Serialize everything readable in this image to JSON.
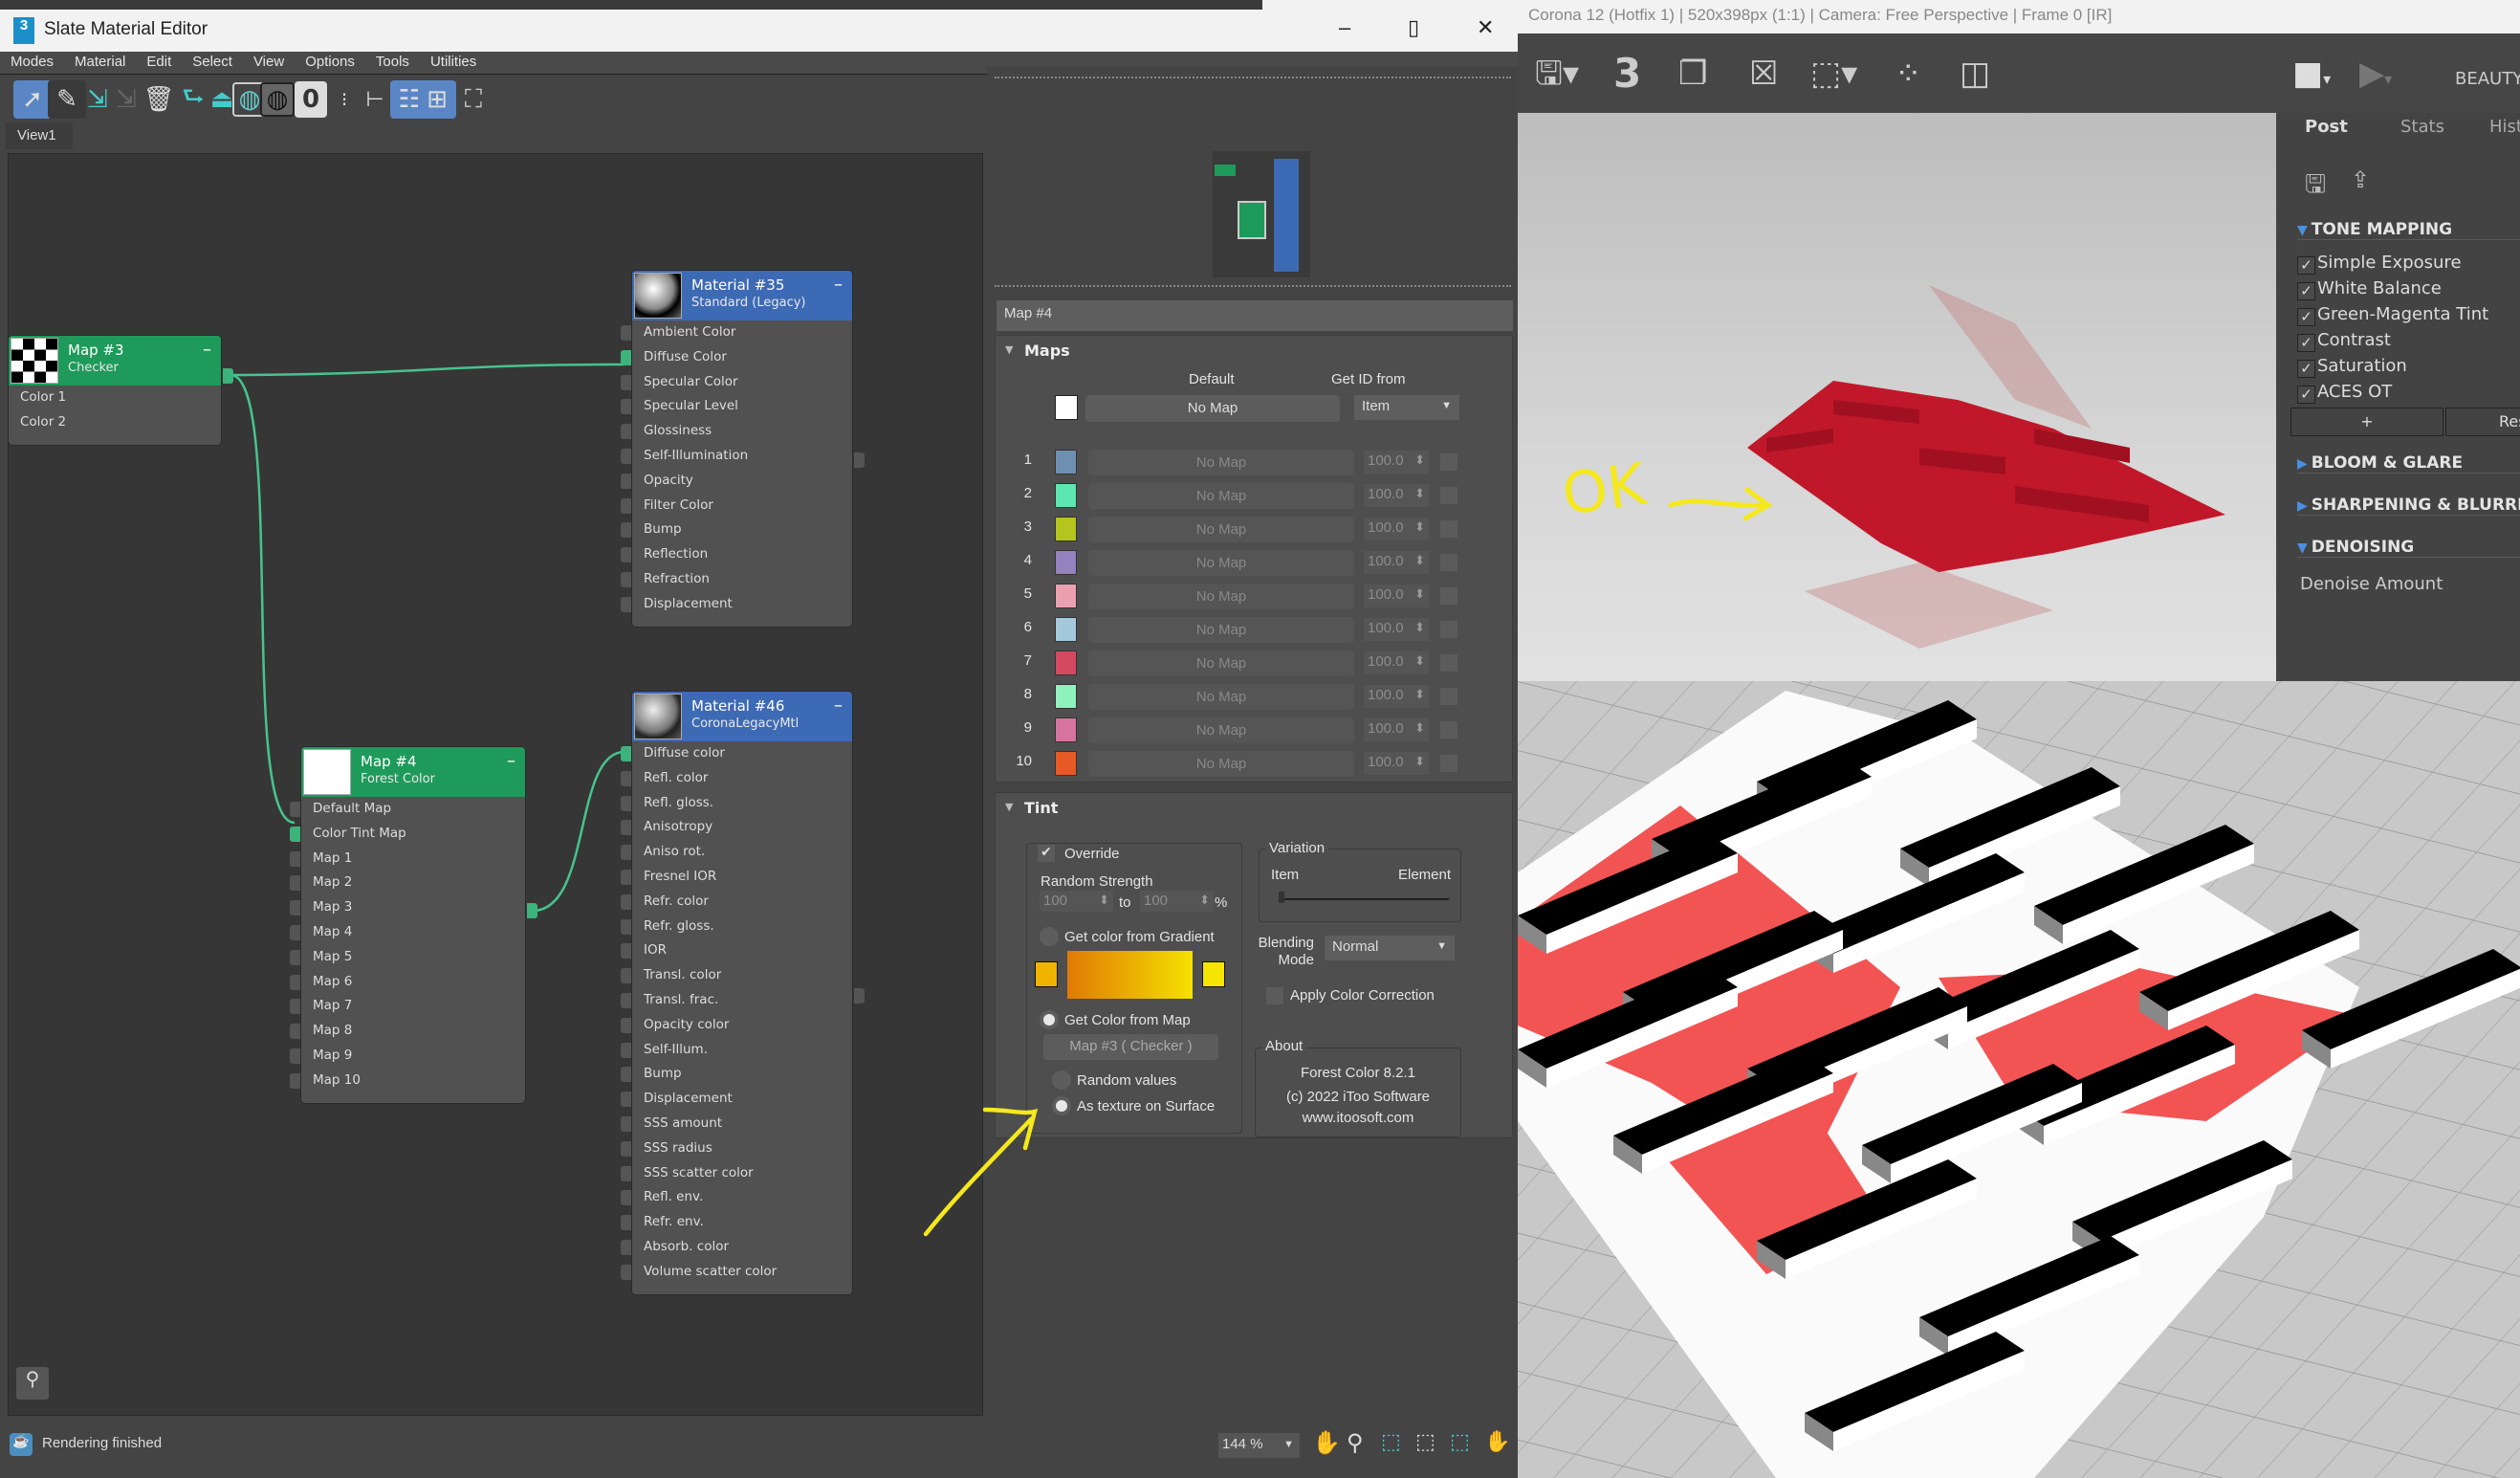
{
  "render_window": {
    "title": "Corona 12 (Hotfix 1) | 520x398px (1:1) | Camera: Free Perspective | Frame 0 [IR]",
    "toolbar": {
      "icons": [
        "save-icon",
        "render-number-3-icon",
        "copy-icon",
        "clear-icon",
        "region-select-icon",
        "focus-icon",
        "compare-icon",
        "stop-icon",
        "play-icon"
      ],
      "number_label": "3",
      "channel_label": "BEAUTY"
    },
    "tabs": [
      "Post",
      "Stats",
      "Hist"
    ],
    "active_tab": "Post",
    "tone_mapping": {
      "title": "TONE MAPPING",
      "items": [
        {
          "label": "Simple Exposure",
          "checked": true
        },
        {
          "label": "White Balance",
          "checked": true
        },
        {
          "label": "Green-Magenta Tint",
          "checked": true
        },
        {
          "label": "Contrast",
          "checked": true
        },
        {
          "label": "Saturation",
          "checked": true
        },
        {
          "label": "ACES OT",
          "checked": true
        }
      ],
      "add_label": "+",
      "reset_label": "Reset"
    },
    "sections": [
      "BLOOM & GLARE",
      "SHARPENING & BLURRING",
      "DENOISING"
    ],
    "denoise_amount_label": "Denoise Amount",
    "annotation_text": "OK"
  },
  "slate": {
    "title": "Slate Material Editor",
    "app_icon_label": "3",
    "menu": [
      "Modes",
      "Material",
      "Edit",
      "Select",
      "View",
      "Options",
      "Tools",
      "Utilities"
    ],
    "view_tab": "View1",
    "nodes": {
      "map3": {
        "title": "Map #3",
        "type": "Checker",
        "slots": [
          "Color 1",
          "Color 2"
        ]
      },
      "mat35": {
        "title": "Material #35",
        "type": "Standard (Legacy)",
        "slots": [
          "Ambient Color",
          "Diffuse Color",
          "Specular Color",
          "Specular Level",
          "Glossiness",
          "Self-Illumination",
          "Opacity",
          "Filter Color",
          "Bump",
          "Reflection",
          "Refraction",
          "Displacement"
        ]
      },
      "map4": {
        "title": "Map #4",
        "type": "Forest Color",
        "slots": [
          "Default Map",
          "Color Tint Map",
          "Map 1",
          "Map 2",
          "Map 3",
          "Map 4",
          "Map 5",
          "Map 6",
          "Map 7",
          "Map 8",
          "Map 9",
          "Map 10"
        ]
      },
      "mat46": {
        "title": "Material #46",
        "type": "CoronaLegacyMtl",
        "slots": [
          "Diffuse color",
          "Refl. color",
          "Refl. gloss.",
          "Anisotropy",
          "Aniso rot.",
          "Fresnel IOR",
          "Refr. color",
          "Refr. gloss.",
          "IOR",
          "Transl. color",
          "Transl. frac.",
          "Opacity color",
          "Self-Illum.",
          "Bump",
          "Displacement",
          "SSS amount",
          "SSS radius",
          "SSS scatter color",
          "Refl. env.",
          "Refr. env.",
          "Absorb. color",
          "Volume scatter color"
        ]
      }
    },
    "status_text": "Rendering finished",
    "zoom_value": "144 %"
  },
  "params": {
    "map_name": "Map #4",
    "maps": {
      "title": "Maps",
      "default_label": "Default",
      "get_id_label": "Get ID from",
      "default_map": "No Map",
      "get_id_value": "Item",
      "default_color": "#ffffff",
      "rows": [
        {
          "n": "1",
          "color": "#6f8fb0",
          "map": "No Map",
          "amount": "100.0",
          "enabled": false
        },
        {
          "n": "2",
          "color": "#5ce6b1",
          "map": "No Map",
          "amount": "100.0",
          "enabled": false
        },
        {
          "n": "3",
          "color": "#b6c41e",
          "map": "No Map",
          "amount": "100.0",
          "enabled": false
        },
        {
          "n": "4",
          "color": "#9381c0",
          "map": "No Map",
          "amount": "100.0",
          "enabled": false
        },
        {
          "n": "5",
          "color": "#eba0b0",
          "map": "No Map",
          "amount": "100.0",
          "enabled": false
        },
        {
          "n": "6",
          "color": "#a5c9dc",
          "map": "No Map",
          "amount": "100.0",
          "enabled": false
        },
        {
          "n": "7",
          "color": "#d44960",
          "map": "No Map",
          "amount": "100.0",
          "enabled": false
        },
        {
          "n": "8",
          "color": "#8ff1bb",
          "map": "No Map",
          "amount": "100.0",
          "enabled": false
        },
        {
          "n": "9",
          "color": "#d6739e",
          "map": "No Map",
          "amount": "100.0",
          "enabled": false
        },
        {
          "n": "10",
          "color": "#e55a25",
          "map": "No Map",
          "amount": "100.0",
          "enabled": false
        }
      ]
    },
    "tint": {
      "title": "Tint",
      "override_label": "Override",
      "override_checked": true,
      "random_strength_label": "Random Strength",
      "strength_from": "100",
      "to_label": "to",
      "strength_to": "100",
      "percent_label": "%",
      "gradient_label": "Get color from Gradient",
      "gradient_colors": [
        "#e07a05",
        "#f5e100"
      ],
      "gradient_left": "#f0b400",
      "gradient_right": "#f5e600",
      "from_map_label": "Get Color from Map",
      "color_source": "map",
      "map_button": "Map #3  ( Checker )",
      "random_values_label": "Random values",
      "as_texture_label": "As texture on Surface",
      "map_mode": "as_texture",
      "variation_label": "Variation",
      "variation_item": "Item",
      "variation_element": "Element",
      "variation_value": 0,
      "blending_label": "Blending Mode",
      "blending_value": "Normal",
      "color_correction_label": "Apply Color Correction",
      "color_correction_checked": false,
      "about_label": "About",
      "about_lines": [
        "Forest Color 8.2.1",
        "(c) 2022 iToo Software",
        "www.itoosoft.com"
      ]
    }
  },
  "colors": {
    "node_green": "#1e9a5a",
    "node_blue": "#3d6ab5",
    "wire": "#47c38e",
    "annotation": "#f5e81c",
    "floor_red": "#f25454"
  }
}
